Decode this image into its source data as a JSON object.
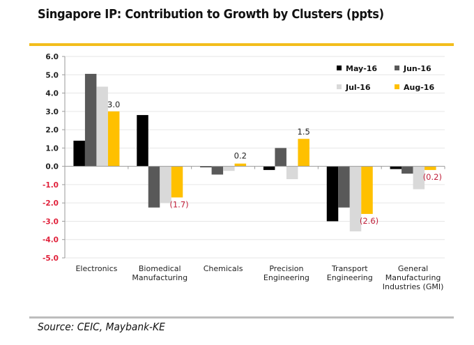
{
  "chart_data": {
    "type": "bar",
    "title": "Singapore IP: Contribution to Growth by Clusters (ppts)",
    "xlabel": "",
    "ylabel": "",
    "ylim": [
      -5.0,
      6.0
    ],
    "yticks": [
      "6.0",
      "5.0",
      "4.0",
      "3.0",
      "2.0",
      "1.0",
      "0.0",
      "-1.0",
      "-2.0",
      "-3.0",
      "-4.0",
      "-5.0"
    ],
    "ytick_values": [
      6,
      5,
      4,
      3,
      2,
      1,
      0,
      -1,
      -2,
      -3,
      -4,
      -5
    ],
    "negative_tick_color": "#e0203a",
    "grid": true,
    "legend_position": "top-right",
    "categories": [
      [
        "Electronics"
      ],
      [
        "Biomedical",
        "Manufacturing"
      ],
      [
        "Chemicals"
      ],
      [
        "Precision",
        "Engineering"
      ],
      [
        "Transport",
        "Engineering"
      ],
      [
        "General",
        "Manufacturing",
        "Industries (GMI)"
      ]
    ],
    "series": [
      {
        "name": "May-16",
        "color": "#000000",
        "values": [
          1.4,
          2.8,
          -0.05,
          -0.2,
          -3.0,
          -0.15
        ]
      },
      {
        "name": "Jun-16",
        "color": "#595959",
        "values": [
          5.05,
          -2.25,
          -0.45,
          1.0,
          -2.25,
          -0.4
        ]
      },
      {
        "name": "Jul-16",
        "color": "#d9d9d9",
        "values": [
          4.35,
          -2.0,
          -0.25,
          -0.7,
          -3.55,
          -1.25
        ]
      },
      {
        "name": "Aug-16",
        "color": "#ffc000",
        "values": [
          3.0,
          -1.7,
          0.15,
          1.5,
          -2.6,
          -0.2
        ]
      }
    ],
    "data_labels": [
      {
        "series": 3,
        "category": 0,
        "text": "3.0",
        "color": "#222222"
      },
      {
        "series": 3,
        "category": 1,
        "text": "(1.7)",
        "color": "#c0203a"
      },
      {
        "series": 3,
        "category": 2,
        "text": "0.2",
        "color": "#222222"
      },
      {
        "series": 3,
        "category": 3,
        "text": "1.5",
        "color": "#222222"
      },
      {
        "series": 3,
        "category": 4,
        "text": "(2.6)",
        "color": "#c0203a"
      },
      {
        "series": 3,
        "category": 5,
        "text": "(0.2)",
        "color": "#c0203a"
      }
    ]
  },
  "header": {
    "title": "Singapore IP: Contribution to Growth by Clusters (ppts)"
  },
  "footer": {
    "source": "Source:  CEIC, Maybank-KE"
  },
  "colors": {
    "accent_rule": "#f2bd1c",
    "source_rule": "#bdbdbd"
  }
}
